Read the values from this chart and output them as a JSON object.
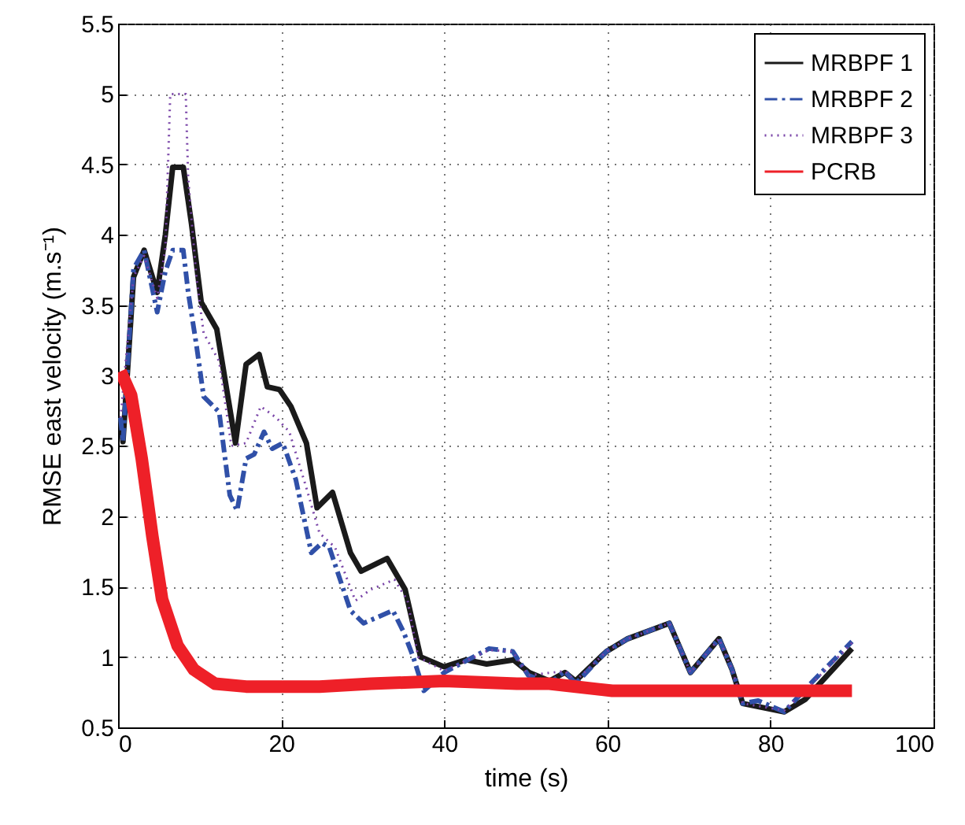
{
  "chart_data": {
    "type": "line",
    "xlabel": "time (s)",
    "ylabel": "RMSE east velocity (m.s⁻¹)",
    "xlim": [
      0,
      100
    ],
    "xticks": [
      0,
      20,
      40,
      60,
      80,
      100
    ],
    "ylim": [
      0.5,
      5.5
    ],
    "yticks": [
      0.5,
      1,
      1.5,
      2,
      2.5,
      3,
      3.5,
      4,
      4.5,
      5,
      5.5
    ],
    "grid": true,
    "legend": "top right",
    "marker": "none",
    "series": [
      {
        "name": "MRBPF 1",
        "color": "#1a1a1a",
        "line_style": "solid",
        "x": [
          0.3,
          0.6,
          1.9,
          3.2,
          4.8,
          5.8,
          6.7,
          8.0,
          9.0,
          10.2,
          12.1,
          14.4,
          15.7,
          17.3,
          18.3,
          19.8,
          21.2,
          23.1,
          24.4,
          26.3,
          28.5,
          29.8,
          33.0,
          35.2,
          37.1,
          40,
          42.7,
          45.2,
          48.5,
          50.4,
          52.9,
          54.8,
          56.1,
          59.9,
          62.5,
          67.6,
          70.2,
          73.7,
          75.3,
          76.6,
          81.7,
          84.3,
          90
        ],
        "values": [
          2.7,
          2.53,
          3.7,
          3.89,
          3.59,
          4.0,
          4.48,
          4.48,
          4.08,
          3.52,
          3.33,
          2.52,
          3.08,
          3.15,
          2.92,
          2.9,
          2.78,
          2.52,
          2.06,
          2.17,
          1.74,
          1.61,
          1.7,
          1.48,
          1.0,
          0.93,
          0.98,
          0.95,
          0.98,
          0.89,
          0.83,
          0.89,
          0.83,
          1.04,
          1.13,
          1.24,
          0.89,
          1.13,
          0.91,
          0.67,
          0.61,
          0.7,
          1.06
        ]
      },
      {
        "name": "MRBPF 2",
        "color": "#3050a8",
        "line_style": "dashed",
        "x": [
          0.3,
          0.6,
          1.9,
          3.2,
          4.8,
          5.8,
          6.7,
          8.0,
          8.6,
          9.6,
          10.5,
          12.4,
          13.7,
          14.6,
          15.7,
          16.7,
          17.9,
          18.9,
          20.2,
          21.8,
          23.7,
          25,
          25.9,
          28.5,
          30.1,
          33.7,
          35,
          36.2,
          37.5,
          40,
          45.5,
          48.4,
          50.3,
          52.9,
          54.8,
          56.1,
          59.9,
          62.5,
          67.6,
          70.2,
          73.7,
          75.3,
          76.6,
          78.5,
          81.7,
          84.9,
          90
        ],
        "values": [
          2.7,
          2.53,
          3.76,
          3.89,
          3.45,
          3.74,
          3.89,
          3.89,
          3.59,
          3.22,
          2.85,
          2.74,
          2.15,
          2.04,
          2.41,
          2.44,
          2.6,
          2.48,
          2.52,
          2.26,
          1.74,
          1.81,
          1.78,
          1.33,
          1.24,
          1.33,
          1.18,
          1.0,
          0.76,
          0.89,
          1.06,
          1.04,
          0.87,
          0.81,
          0.9,
          0.81,
          1.04,
          1.13,
          1.24,
          0.89,
          1.13,
          0.91,
          0.67,
          0.69,
          0.61,
          0.81,
          1.11
        ]
      },
      {
        "name": "MRBPF 3",
        "color": "#7a45a8",
        "line_style": "dotted",
        "x": [
          0.3,
          1.9,
          3.2,
          4.8,
          5.8,
          6.4,
          8.3,
          8.6,
          9.6,
          10.5,
          12.4,
          13.9,
          15.7,
          17.5,
          19.4,
          21,
          23.1,
          24.7,
          26.6,
          29.1,
          31,
          33.9,
          35.5,
          36.8,
          40,
          45.5,
          48.4,
          50.3,
          54.8,
          56.1,
          59.9,
          62.5,
          67.6,
          70.2,
          73.7,
          75.3,
          76.6,
          81.7,
          84.9,
          90
        ],
        "values": [
          2.7,
          3.7,
          3.85,
          3.55,
          3.9,
          5.0,
          5.0,
          4.4,
          3.7,
          3.3,
          3.1,
          2.5,
          2.52,
          2.78,
          2.7,
          2.6,
          2.2,
          1.88,
          1.78,
          1.4,
          1.48,
          1.55,
          1.4,
          1.0,
          0.9,
          1.05,
          1.04,
          0.87,
          0.9,
          0.83,
          1.04,
          1.13,
          1.24,
          0.89,
          1.13,
          0.91,
          0.67,
          0.62,
          0.8,
          1.1
        ]
      },
      {
        "name": "PCRB",
        "color": "#ee2028",
        "line_style": "solid",
        "x": [
          0.3,
          1.6,
          2.9,
          4.2,
          5.4,
          7.3,
          9.3,
          11.9,
          15.7,
          24.7,
          31,
          40,
          48.9,
          52.9,
          60.6,
          90
        ],
        "values": [
          3.03,
          2.86,
          2.41,
          1.86,
          1.41,
          1.08,
          0.91,
          0.81,
          0.79,
          0.79,
          0.81,
          0.83,
          0.81,
          0.81,
          0.76,
          0.76
        ]
      }
    ]
  }
}
